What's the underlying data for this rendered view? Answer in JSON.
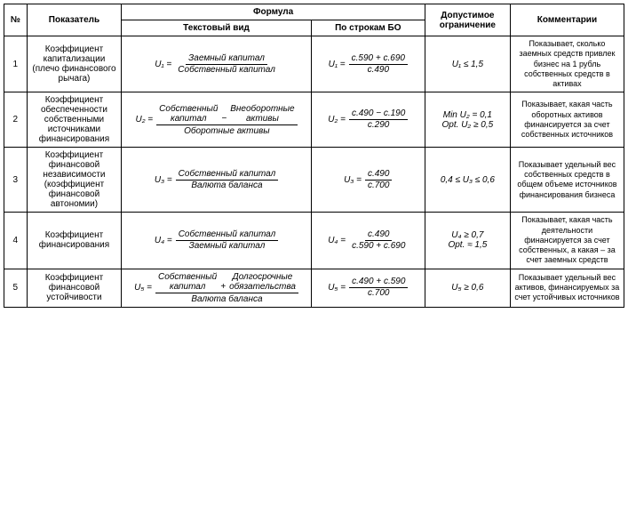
{
  "headers": {
    "num": "№",
    "indicator": "Показатель",
    "formula": "Формула",
    "formula_text": "Текстовый вид",
    "formula_bo": "По строкам БО",
    "limit": "Допустимое ограничение",
    "comment": "Комментарии"
  },
  "rows": [
    {
      "num": "1",
      "indicator": "Коэффициент капитализации (плечо финансового рычага)",
      "u": "U₁",
      "frac_num": "Заемный капитал",
      "frac_den": "Собственный капитал",
      "bo_num": "с.590 + с.690",
      "bo_den": "с.490",
      "limit": "U₁ ≤ 1,5",
      "comment": "Показывает, сколько заемных средств привлек бизнес на 1 рубль собственных средств в активах"
    },
    {
      "num": "2",
      "indicator": "Коэффициент обеспеченности собственными источниками финансирования",
      "u": "U₂",
      "sum_a_top": "Собственный",
      "sum_a_bot": "капитал",
      "sum_sign": "−",
      "sum_b_top": "Внеоборотные",
      "sum_b_bot": "активы",
      "frac_den": "Оборотные активы",
      "bo_num": "с.490 − с.190",
      "bo_den": "с.290",
      "limit_l1": "Min U₂ = 0,1",
      "limit_l2": "Opt. U₂ ≥ 0,5",
      "comment": "Показывает, какая часть оборотных активов финансируется за счет собственных источников"
    },
    {
      "num": "3",
      "indicator": "Коэффициент финансовой независимости (коэффициент финансовой автономии)",
      "u": "U₃",
      "frac_num": "Собственный капитал",
      "frac_den": "Валюта баланса",
      "bo_num": "с.490",
      "bo_den": "с.700",
      "limit": "0,4 ≤ U₃ ≤ 0,6",
      "comment": "Показывает удельный вес собственных средств в общем объеме источников финансирования бизнеса"
    },
    {
      "num": "4",
      "indicator": "Коэффициент финансирования",
      "u": "U₄",
      "frac_num": "Собственный капитал",
      "frac_den": "Заемный капитал",
      "bo_num": "с.490",
      "bo_den": "с.590 + с.690",
      "limit_l1": "U₄ ≥ 0,7",
      "limit_l2": "Opt. ≈ 1,5",
      "comment": "Показывает, какая часть деятельности финансируется за счет собственных, а какая – за счет заемных средств"
    },
    {
      "num": "5",
      "indicator": "Коэффициент финансовой устойчивости",
      "u": "U₅",
      "sum_a_top": "Собственный",
      "sum_a_bot": "капитал",
      "sum_sign": "+",
      "sum_b_top": "Долгосрочные",
      "sum_b_bot": "обязательства",
      "frac_den": "Валюта баланса",
      "bo_num": "с.490 + с.590",
      "bo_den": "с.700",
      "limit": "U₅ ≥ 0,6",
      "comment": "Показывает удельный вес активов, финансируемых за счет устойчивых источников"
    }
  ]
}
